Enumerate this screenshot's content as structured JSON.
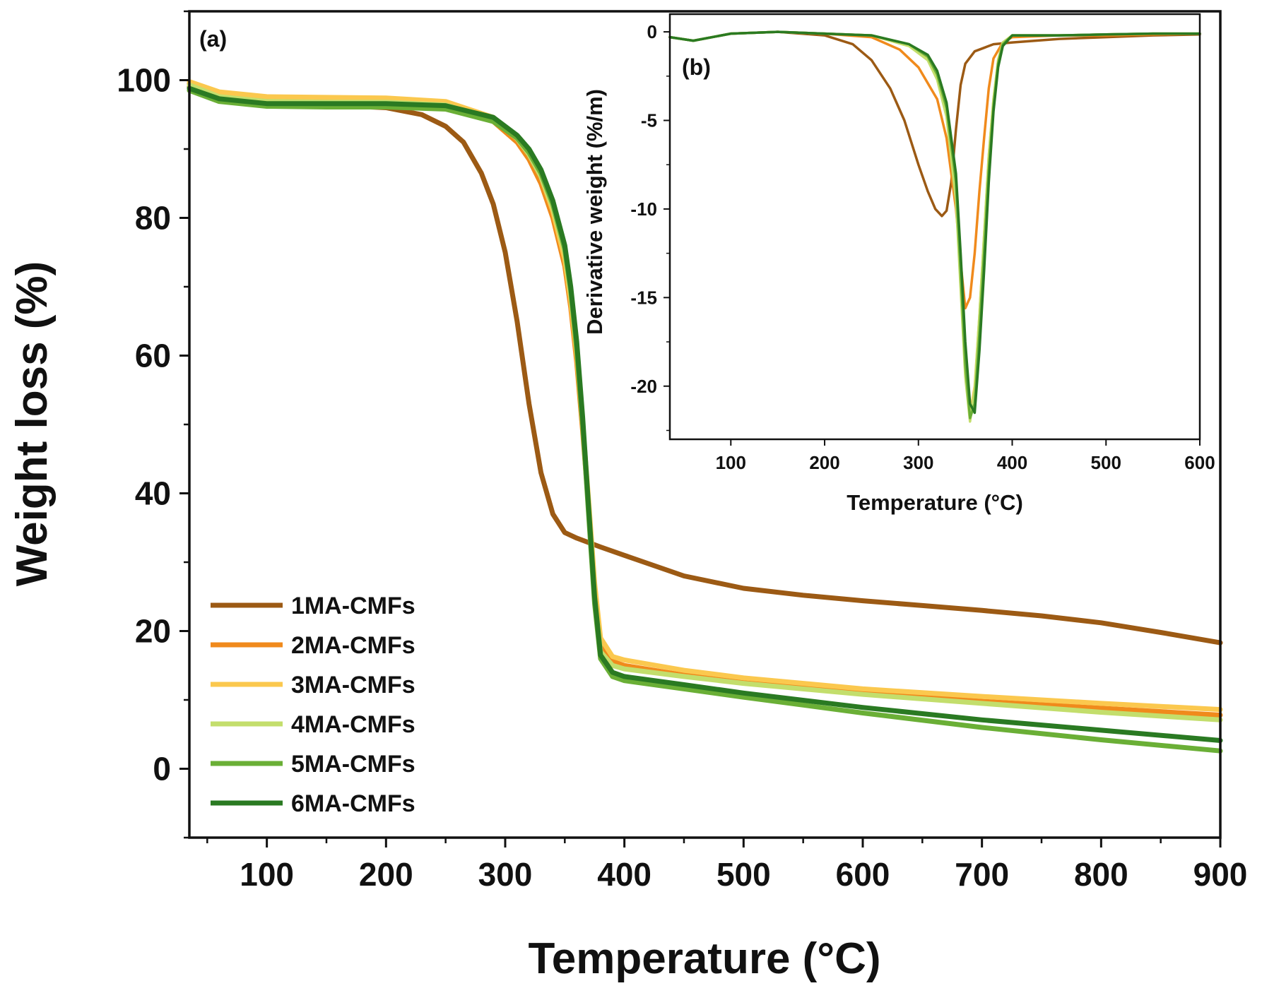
{
  "chart_data": [
    {
      "type": "line",
      "panel_label": "(a)",
      "xlabel": "Temperature (°C)",
      "ylabel": "Weight loss (%)",
      "xlim": [
        35,
        900
      ],
      "ylim": [
        -10,
        110
      ],
      "xticks": [
        100,
        200,
        300,
        400,
        500,
        600,
        700,
        800,
        900
      ],
      "yticks": [
        0,
        20,
        40,
        60,
        80,
        100
      ],
      "legend_position": "bottom-left",
      "series": [
        {
          "name": "1MA-CMFs",
          "color": "#9c5a14",
          "x": [
            35,
            60,
            100,
            150,
            200,
            230,
            250,
            265,
            280,
            290,
            300,
            310,
            320,
            330,
            340,
            350,
            360,
            380,
            400,
            450,
            500,
            550,
            600,
            650,
            700,
            750,
            800,
            850,
            900
          ],
          "y": [
            99.0,
            97.3,
            96.6,
            96.4,
            96.0,
            95.0,
            93.3,
            91.0,
            86.5,
            82.0,
            75.0,
            65.0,
            53.0,
            43.0,
            37.0,
            34.3,
            33.5,
            32.2,
            31.0,
            28.0,
            26.2,
            25.2,
            24.4,
            23.7,
            23.0,
            22.2,
            21.2,
            19.8,
            18.3
          ]
        },
        {
          "name": "2MA-CMFs",
          "color": "#f08a1c",
          "x": [
            35,
            60,
            100,
            150,
            200,
            250,
            290,
            310,
            320,
            330,
            340,
            350,
            355,
            360,
            365,
            370,
            375,
            380,
            390,
            400,
            450,
            500,
            600,
            700,
            800,
            900
          ],
          "y": [
            99.5,
            97.8,
            97.0,
            96.9,
            96.8,
            96.3,
            94.0,
            91.0,
            88.5,
            85.0,
            80.0,
            73.0,
            67.0,
            59.0,
            49.0,
            38.0,
            26.0,
            18.0,
            15.6,
            15.0,
            13.6,
            12.5,
            11.0,
            9.8,
            8.8,
            7.8
          ]
        },
        {
          "name": "3MA-CMFs",
          "color": "#fbc84e",
          "x": [
            35,
            60,
            100,
            150,
            200,
            250,
            290,
            310,
            320,
            330,
            340,
            350,
            355,
            360,
            365,
            370,
            375,
            380,
            390,
            400,
            450,
            500,
            600,
            700,
            800,
            900
          ],
          "y": [
            99.8,
            98.3,
            97.6,
            97.5,
            97.4,
            96.9,
            94.6,
            91.8,
            89.5,
            86.0,
            81.0,
            74.0,
            68.0,
            60.0,
            50.0,
            39.0,
            27.0,
            19.0,
            16.3,
            15.8,
            14.3,
            13.2,
            11.6,
            10.5,
            9.5,
            8.6
          ]
        },
        {
          "name": "4MA-CMFs",
          "color": "#c3de6c",
          "x": [
            35,
            60,
            100,
            150,
            200,
            250,
            290,
            310,
            320,
            330,
            340,
            350,
            355,
            360,
            365,
            370,
            375,
            380,
            390,
            400,
            450,
            500,
            600,
            700,
            800,
            900
          ],
          "y": [
            99.3,
            97.6,
            96.9,
            96.8,
            96.8,
            96.4,
            94.3,
            91.5,
            89.2,
            86.0,
            81.5,
            75.0,
            69.0,
            61.0,
            50.0,
            38.0,
            25.0,
            17.0,
            15.0,
            14.5,
            13.4,
            12.4,
            10.8,
            9.5,
            8.2,
            7.1
          ]
        },
        {
          "name": "5MA-CMFs",
          "color": "#6aaf36",
          "x": [
            35,
            60,
            100,
            150,
            200,
            250,
            290,
            310,
            320,
            330,
            340,
            350,
            355,
            360,
            365,
            370,
            375,
            380,
            390,
            400,
            450,
            500,
            600,
            700,
            800,
            900
          ],
          "y": [
            98.5,
            96.9,
            96.2,
            96.1,
            96.1,
            95.8,
            94.0,
            91.6,
            89.5,
            86.5,
            82.0,
            75.5,
            69.5,
            61.0,
            50.0,
            37.0,
            24.0,
            16.0,
            13.4,
            12.8,
            11.6,
            10.4,
            8.1,
            6.0,
            4.2,
            2.6
          ]
        },
        {
          "name": "6MA-CMFs",
          "color": "#2a7a22",
          "x": [
            35,
            60,
            100,
            150,
            200,
            250,
            290,
            310,
            320,
            330,
            340,
            350,
            355,
            360,
            365,
            370,
            375,
            380,
            390,
            400,
            450,
            500,
            600,
            700,
            800,
            900
          ],
          "y": [
            98.8,
            97.3,
            96.6,
            96.6,
            96.6,
            96.3,
            94.6,
            92.0,
            90.0,
            87.0,
            82.5,
            76.0,
            70.0,
            62.0,
            51.0,
            38.0,
            25.0,
            16.5,
            14.0,
            13.4,
            12.2,
            11.0,
            8.9,
            7.1,
            5.6,
            4.1
          ]
        }
      ]
    },
    {
      "type": "line",
      "panel_label": "(b)",
      "xlabel": "Temperature (°C)",
      "ylabel": "Derivative weight (%/m)",
      "xlim": [
        35,
        600
      ],
      "ylim": [
        -23,
        1
      ],
      "xticks": [
        100,
        200,
        300,
        400,
        500,
        600
      ],
      "yticks": [
        0,
        -5,
        -10,
        -15,
        -20
      ],
      "series": [
        {
          "name": "1MA-CMFs",
          "color": "#9c5a14",
          "x": [
            35,
            60,
            100,
            150,
            200,
            230,
            250,
            270,
            285,
            300,
            310,
            318,
            325,
            330,
            335,
            340,
            345,
            350,
            360,
            370,
            380,
            400,
            450,
            500,
            550,
            600
          ],
          "y": [
            -0.3,
            -0.5,
            -0.1,
            0.0,
            -0.2,
            -0.7,
            -1.6,
            -3.2,
            -5.0,
            -7.5,
            -9.0,
            -10.0,
            -10.4,
            -10.1,
            -8.5,
            -5.5,
            -3.0,
            -1.8,
            -1.1,
            -0.9,
            -0.7,
            -0.6,
            -0.4,
            -0.3,
            -0.2,
            -0.15
          ]
        },
        {
          "name": "2MA-CMFs",
          "color": "#f08a1c",
          "x": [
            35,
            60,
            100,
            150,
            200,
            250,
            280,
            300,
            320,
            330,
            340,
            345,
            350,
            355,
            360,
            365,
            370,
            375,
            380,
            390,
            400,
            450,
            500,
            550,
            600
          ],
          "y": [
            -0.3,
            -0.5,
            -0.1,
            0.0,
            -0.1,
            -0.3,
            -1.0,
            -2.0,
            -3.8,
            -6.0,
            -10.0,
            -13.0,
            -15.6,
            -15.0,
            -12.5,
            -9.0,
            -6.0,
            -3.2,
            -1.5,
            -0.6,
            -0.3,
            -0.2,
            -0.2,
            -0.15,
            -0.1
          ]
        },
        {
          "name": "3MA-CMFs",
          "color": "#fbc84e",
          "x": [
            35,
            60,
            100,
            150,
            200,
            250,
            290,
            310,
            320,
            330,
            340,
            345,
            350,
            355,
            360,
            365,
            370,
            375,
            380,
            385,
            390,
            400,
            450,
            500,
            550,
            600
          ],
          "y": [
            -0.3,
            -0.5,
            -0.1,
            0.0,
            -0.1,
            -0.2,
            -0.8,
            -1.5,
            -2.5,
            -4.5,
            -9.0,
            -14.0,
            -19.0,
            -21.6,
            -20.0,
            -16.0,
            -11.5,
            -7.0,
            -3.8,
            -1.6,
            -0.6,
            -0.2,
            -0.2,
            -0.15,
            -0.1,
            -0.1
          ]
        },
        {
          "name": "4MA-CMFs",
          "color": "#c3de6c",
          "x": [
            35,
            60,
            100,
            150,
            200,
            250,
            290,
            310,
            320,
            330,
            340,
            345,
            350,
            355,
            360,
            365,
            370,
            375,
            380,
            385,
            390,
            400,
            450,
            500,
            550,
            600
          ],
          "y": [
            -0.3,
            -0.5,
            -0.1,
            0.0,
            -0.1,
            -0.2,
            -0.8,
            -1.6,
            -2.7,
            -4.8,
            -9.5,
            -14.5,
            -19.5,
            -22.0,
            -20.2,
            -16.0,
            -11.5,
            -7.0,
            -3.8,
            -1.6,
            -0.6,
            -0.2,
            -0.2,
            -0.15,
            -0.1,
            -0.1
          ]
        },
        {
          "name": "5MA-CMFs",
          "color": "#6aaf36",
          "x": [
            35,
            60,
            100,
            150,
            200,
            250,
            290,
            310,
            320,
            330,
            340,
            345,
            350,
            355,
            360,
            365,
            370,
            375,
            380,
            385,
            390,
            400,
            450,
            500,
            550,
            600
          ],
          "y": [
            -0.3,
            -0.5,
            -0.1,
            0.0,
            -0.1,
            -0.2,
            -0.7,
            -1.4,
            -2.4,
            -4.3,
            -8.5,
            -13.5,
            -18.8,
            -21.8,
            -21.0,
            -17.0,
            -12.5,
            -7.8,
            -4.2,
            -1.8,
            -0.7,
            -0.2,
            -0.2,
            -0.15,
            -0.1,
            -0.1
          ]
        },
        {
          "name": "6MA-CMFs",
          "color": "#2a7a22",
          "x": [
            35,
            60,
            100,
            150,
            200,
            250,
            290,
            310,
            320,
            330,
            340,
            345,
            350,
            355,
            360,
            365,
            370,
            375,
            380,
            385,
            390,
            400,
            450,
            500,
            550,
            600
          ],
          "y": [
            -0.3,
            -0.5,
            -0.1,
            0.0,
            -0.1,
            -0.2,
            -0.7,
            -1.3,
            -2.2,
            -4.0,
            -8.0,
            -12.5,
            -17.5,
            -21.0,
            -21.5,
            -18.0,
            -13.5,
            -8.5,
            -4.5,
            -2.0,
            -0.8,
            -0.2,
            -0.2,
            -0.15,
            -0.1,
            -0.1
          ]
        }
      ]
    }
  ]
}
